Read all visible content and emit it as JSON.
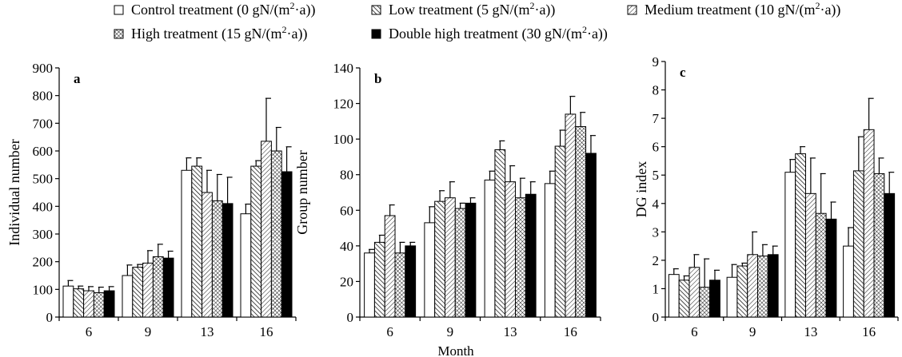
{
  "colors": {
    "axis": "#000000",
    "bar_edge": "#000000",
    "background": "#ffffff"
  },
  "legend": [
    {
      "text": "Control treatment (0 gN/(m",
      "sup": "2",
      "tail": "·a))",
      "pattern": "open"
    },
    {
      "text": "Low treatment (5 gN/(m",
      "sup": "2",
      "tail": "·a))",
      "pattern": "diag-dense"
    },
    {
      "text": "Medium treatment (10 gN/(m",
      "sup": "2",
      "tail": "·a))",
      "pattern": "diag-sparse"
    },
    {
      "text": "High treatment (15 gN/(m",
      "sup": "2",
      "tail": "·a))",
      "pattern": "crosshatch"
    },
    {
      "text": "Double high treatment (30 gN/(m",
      "sup": "2",
      "tail": "·a))",
      "pattern": "solid"
    }
  ],
  "xlabel_common": "Month",
  "chart_data": [
    {
      "type": "bar",
      "panel_label": "a",
      "ylabel": "Individual number",
      "ylim": [
        0,
        900
      ],
      "yticks": [
        0,
        100,
        200,
        300,
        400,
        500,
        600,
        700,
        800,
        900
      ],
      "categories": [
        "6",
        "9",
        "13",
        "16"
      ],
      "series": [
        {
          "name": "Control treatment (0 gN/(m2·a))",
          "values": [
            112,
            150,
            530,
            373
          ],
          "errors": [
            20,
            38,
            45,
            35
          ]
        },
        {
          "name": "Low treatment (5 gN/(m2·a))",
          "values": [
            102,
            180,
            545,
            545
          ],
          "errors": [
            10,
            10,
            30,
            20
          ]
        },
        {
          "name": "Medium treatment (10 gN/(m2·a))",
          "values": [
            95,
            195,
            450,
            635
          ],
          "errors": [
            15,
            45,
            80,
            155
          ]
        },
        {
          "name": "High treatment (15 gN/(m2·a))",
          "values": [
            88,
            218,
            420,
            600
          ],
          "errors": [
            20,
            45,
            95,
            85
          ]
        },
        {
          "name": "Double high treatment (30 gN/(m2·a))",
          "values": [
            95,
            213,
            410,
            525
          ],
          "errors": [
            15,
            25,
            95,
            90
          ]
        }
      ]
    },
    {
      "type": "bar",
      "panel_label": "b",
      "ylabel": "Group number",
      "ylim": [
        0,
        140
      ],
      "yticks": [
        0,
        20,
        40,
        60,
        80,
        100,
        120,
        140
      ],
      "categories": [
        "6",
        "9",
        "13",
        "16"
      ],
      "series": [
        {
          "name": "Control treatment (0 gN/(m2·a))",
          "values": [
            36,
            53,
            77,
            75
          ],
          "errors": [
            2,
            9,
            5,
            7
          ]
        },
        {
          "name": "Low treatment (5 gN/(m2·a))",
          "values": [
            42,
            65,
            94,
            96
          ],
          "errors": [
            4,
            6,
            5,
            9
          ]
        },
        {
          "name": "Medium treatment (10 gN/(m2·a))",
          "values": [
            57,
            67,
            76,
            114
          ],
          "errors": [
            6,
            9,
            9,
            10
          ]
        },
        {
          "name": "High treatment (15 gN/(m2·a))",
          "values": [
            36,
            61,
            67,
            107
          ],
          "errors": [
            6,
            3,
            11,
            8
          ]
        },
        {
          "name": "Double high treatment (30 gN/(m2·a))",
          "values": [
            40,
            64,
            69,
            92
          ],
          "errors": [
            2,
            3,
            7,
            10
          ]
        }
      ]
    },
    {
      "type": "bar",
      "panel_label": "c",
      "ylabel": "DG index",
      "ylim": [
        0,
        9
      ],
      "yticks": [
        0,
        1,
        2,
        3,
        4,
        5,
        6,
        7,
        8,
        9
      ],
      "categories": [
        "6",
        "9",
        "13",
        "16"
      ],
      "series": [
        {
          "name": "Control treatment (0 gN/(m2·a))",
          "values": [
            1.5,
            1.4,
            5.1,
            2.5
          ],
          "errors": [
            0.2,
            0.45,
            0.45,
            0.65
          ]
        },
        {
          "name": "Low treatment (5 gN/(m2·a))",
          "values": [
            1.3,
            1.8,
            5.75,
            5.15
          ],
          "errors": [
            0.15,
            0.1,
            0.25,
            1.2
          ]
        },
        {
          "name": "Medium treatment (10 gN/(m2·a))",
          "values": [
            1.75,
            2.2,
            4.35,
            6.6
          ],
          "errors": [
            0.45,
            0.8,
            1.25,
            1.1
          ]
        },
        {
          "name": "High treatment (15 gN/(m2·a))",
          "values": [
            1.05,
            2.15,
            3.65,
            5.05
          ],
          "errors": [
            1.0,
            0.4,
            1.4,
            0.55
          ]
        },
        {
          "name": "Double high treatment (30 gN/(m2·a))",
          "values": [
            1.3,
            2.2,
            3.45,
            4.35
          ],
          "errors": [
            0.35,
            0.3,
            0.6,
            0.75
          ]
        }
      ]
    }
  ]
}
